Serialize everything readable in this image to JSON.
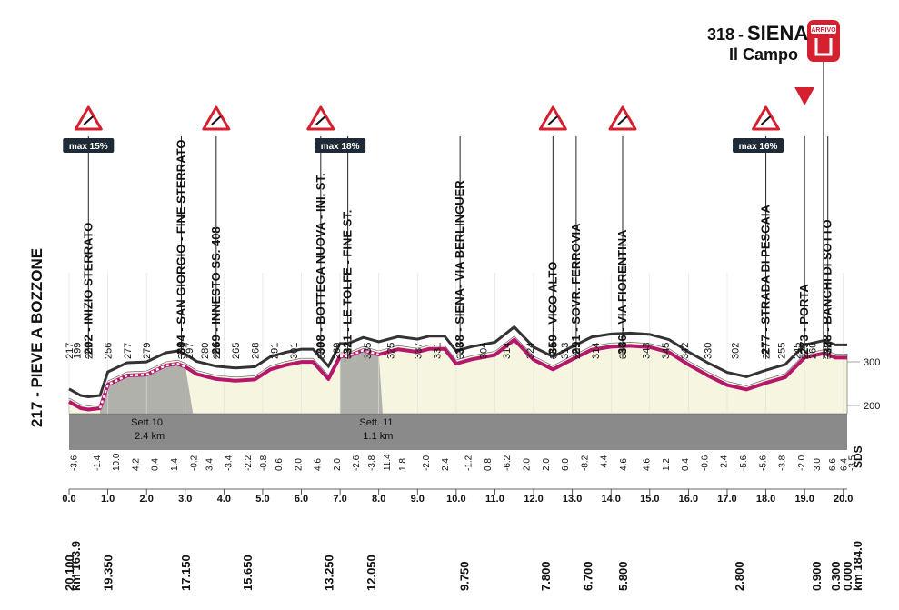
{
  "start": {
    "elevation": "217",
    "name": "PIEVE A BOZZONE",
    "km_total": "km 163.9"
  },
  "finish": {
    "elevation": "318",
    "name": "SIENA",
    "subname": "Il Campo",
    "badge": "ARRIVO",
    "km_total": "km 184.0"
  },
  "y_axis_labels": [
    "300",
    "200"
  ],
  "brand": "SDS",
  "climb_badges": [
    {
      "text": "max 15%",
      "km": 0.5
    },
    {
      "text": "max 18%",
      "km": 7.0
    },
    {
      "text": "max 16%",
      "km": 17.8
    }
  ],
  "sectors": [
    {
      "label": "Sett.10",
      "length": "2.4 km"
    },
    {
      "label": "Sett. 11",
      "length": "1.1 km"
    }
  ],
  "waypoints": [
    {
      "km": 0.5,
      "text": "202 - INIZIO STERRATO",
      "sign": "climb"
    },
    {
      "km": 2.9,
      "text": "304 - SAN GIORGIO - FINE STERRATO",
      "sign": "none"
    },
    {
      "km": 3.8,
      "text": "269 - INNESTO SS. 408",
      "sign": "curve"
    },
    {
      "km": 6.5,
      "text": "308 - BOTTEGA NUOVA - INI. ST.",
      "sign": "climb"
    },
    {
      "km": 7.2,
      "text": "321 - LE TOLFE - FINE ST.",
      "sign": "none"
    },
    {
      "km": 10.1,
      "text": "338 - SIENA- VIA BERLINGUER",
      "sign": "none"
    },
    {
      "km": 12.5,
      "text": "359 - VICO ALTO",
      "sign": "roundabout"
    },
    {
      "km": 13.1,
      "text": "291 - SOVR. FERROVIA",
      "sign": "none"
    },
    {
      "km": 14.3,
      "text": "336 - VIA FIORENTINA",
      "sign": "curve"
    },
    {
      "km": 18.0,
      "text": "277 - STRADA DI PESCAIA",
      "sign": "curve"
    },
    {
      "km": 19.0,
      "text": "273 - PORTA",
      "sign": "triangle"
    },
    {
      "km": 19.6,
      "text": "328 - BANCHI DI SOTTO",
      "sign": "none"
    }
  ],
  "chart_data": {
    "type": "area",
    "xlabel": "",
    "ylabel": "",
    "xlim": [
      0,
      20.1
    ],
    "ylim": [
      150,
      400
    ],
    "x_ticks": [
      "0.0",
      "1.0",
      "2.0",
      "3.0",
      "4.0",
      "5.0",
      "6.0",
      "7.0",
      "8.0",
      "9.0",
      "10.0",
      "11.0",
      "12.0",
      "13.0",
      "14.0",
      "15.0",
      "16.0",
      "17.0",
      "18.0",
      "19.0",
      "20.0"
    ],
    "series": [
      {
        "x": [
          0.0,
          0.3,
          0.5,
          0.8,
          1.0,
          1.5,
          2.0,
          2.5,
          2.8,
          3.0,
          3.3,
          3.8,
          4.3,
          4.8,
          5.2,
          5.6,
          6.0,
          6.3,
          6.7,
          7.0,
          7.2,
          7.6,
          8.0,
          8.5,
          9.0,
          9.3,
          9.7,
          10.0,
          10.4,
          11.0,
          11.5,
          12.0,
          12.5,
          13.0,
          13.5,
          14.0,
          14.5,
          15.0,
          15.5,
          16.0,
          16.5,
          17.0,
          17.5,
          18.0,
          18.5,
          19.0,
          19.5,
          19.8,
          20.1
        ],
        "y": [
          217,
          202,
          199,
          202,
          256,
          277,
          279,
          300,
          304,
          297,
          280,
          269,
          265,
          268,
          291,
          301,
          308,
          308,
          269,
          321,
          321,
          335,
          325,
          337,
          331,
          338,
          338,
          304,
          314,
          324,
          359,
          313,
          291,
          314,
          336,
          343,
          345,
          342,
          330,
          302,
          277,
          255,
          245,
          260,
          273,
          318,
          328,
          318,
          318
        ]
      }
    ],
    "elevation_labels": [
      {
        "km": 0.0,
        "text": "217"
      },
      {
        "km": 0.2,
        "text": "199"
      },
      {
        "km": 0.5,
        "text": "202"
      },
      {
        "km": 1.0,
        "text": "256"
      },
      {
        "km": 1.5,
        "text": "277"
      },
      {
        "km": 2.0,
        "text": "279"
      },
      {
        "km": 2.9,
        "text": "304"
      },
      {
        "km": 3.1,
        "text": "297"
      },
      {
        "km": 3.5,
        "text": "280"
      },
      {
        "km": 3.8,
        "text": "269"
      },
      {
        "km": 4.3,
        "text": "265"
      },
      {
        "km": 4.8,
        "text": "268"
      },
      {
        "km": 5.3,
        "text": "291"
      },
      {
        "km": 5.8,
        "text": "301"
      },
      {
        "km": 6.5,
        "text": "308"
      },
      {
        "km": 6.9,
        "text": "269"
      },
      {
        "km": 7.2,
        "text": "321"
      },
      {
        "km": 7.7,
        "text": "335"
      },
      {
        "km": 8.3,
        "text": "325"
      },
      {
        "km": 9.0,
        "text": "337"
      },
      {
        "km": 9.5,
        "text": "331"
      },
      {
        "km": 10.1,
        "text": "338"
      },
      {
        "km": 10.7,
        "text": "304"
      },
      {
        "km": 11.3,
        "text": "314"
      },
      {
        "km": 11.9,
        "text": "324"
      },
      {
        "km": 12.5,
        "text": "359"
      },
      {
        "km": 12.8,
        "text": "313"
      },
      {
        "km": 13.1,
        "text": "291"
      },
      {
        "km": 13.6,
        "text": "314"
      },
      {
        "km": 14.3,
        "text": "336"
      },
      {
        "km": 14.9,
        "text": "343"
      },
      {
        "km": 15.4,
        "text": "345"
      },
      {
        "km": 15.9,
        "text": "342"
      },
      {
        "km": 16.5,
        "text": "330"
      },
      {
        "km": 17.2,
        "text": "302"
      },
      {
        "km": 18.0,
        "text": "277"
      },
      {
        "km": 18.4,
        "text": "255"
      },
      {
        "km": 18.8,
        "text": "245"
      },
      {
        "km": 19.2,
        "text": "260"
      },
      {
        "km": 19.0,
        "text": "273"
      },
      {
        "km": 19.6,
        "text": "328"
      }
    ],
    "gradients": [
      {
        "km": 0.1,
        "text": "-3.6"
      },
      {
        "km": 0.7,
        "text": "-1.4"
      },
      {
        "km": 1.2,
        "text": "10.0"
      },
      {
        "km": 1.7,
        "text": "4.2"
      },
      {
        "km": 2.2,
        "text": "0.4"
      },
      {
        "km": 2.7,
        "text": "1.4"
      },
      {
        "km": 3.2,
        "text": "-0.2"
      },
      {
        "km": 3.6,
        "text": "3.4"
      },
      {
        "km": 4.1,
        "text": "-3.4"
      },
      {
        "km": 4.6,
        "text": "-2.2"
      },
      {
        "km": 5.0,
        "text": "-0.8"
      },
      {
        "km": 5.4,
        "text": "0.6"
      },
      {
        "km": 5.9,
        "text": "2.0"
      },
      {
        "km": 6.4,
        "text": "4.6"
      },
      {
        "km": 6.9,
        "text": "2.0"
      },
      {
        "km": 7.4,
        "text": "-2.6"
      },
      {
        "km": 7.8,
        "text": "-3.8"
      },
      {
        "km": 8.2,
        "text": "11.4"
      },
      {
        "km": 8.6,
        "text": "1.8"
      },
      {
        "km": 9.2,
        "text": "-2.0"
      },
      {
        "km": 9.7,
        "text": "2.4"
      },
      {
        "km": 10.3,
        "text": "-1.2"
      },
      {
        "km": 10.8,
        "text": "0.8"
      },
      {
        "km": 11.3,
        "text": "-6.2"
      },
      {
        "km": 11.8,
        "text": "2.0"
      },
      {
        "km": 12.3,
        "text": "2.0"
      },
      {
        "km": 12.8,
        "text": "6.0"
      },
      {
        "km": 13.3,
        "text": "-8.2"
      },
      {
        "km": 13.8,
        "text": "-4.4"
      },
      {
        "km": 14.3,
        "text": "4.6"
      },
      {
        "km": 14.9,
        "text": "4.6"
      },
      {
        "km": 15.4,
        "text": "1.2"
      },
      {
        "km": 15.9,
        "text": "0.4"
      },
      {
        "km": 16.4,
        "text": "-0.6"
      },
      {
        "km": 16.9,
        "text": "-2.4"
      },
      {
        "km": 17.4,
        "text": "-5.6"
      },
      {
        "km": 17.9,
        "text": "-5.6"
      },
      {
        "km": 18.4,
        "text": "-3.8"
      },
      {
        "km": 18.9,
        "text": "-2.0"
      },
      {
        "km": 19.3,
        "text": "3.0"
      },
      {
        "km": 19.7,
        "text": "6.6"
      },
      {
        "km": 20.0,
        "text": "6.4"
      },
      {
        "km": 20.2,
        "text": "-3.5"
      }
    ],
    "distance_labels": [
      {
        "km": 0.0,
        "text": "20.100"
      },
      {
        "km": 1.0,
        "text": "19.350"
      },
      {
        "km": 3.0,
        "text": "17.150"
      },
      {
        "km": 4.6,
        "text": "15.650"
      },
      {
        "km": 6.7,
        "text": "13.250"
      },
      {
        "km": 7.8,
        "text": "12.050"
      },
      {
        "km": 10.2,
        "text": "9.750"
      },
      {
        "km": 12.3,
        "text": "7.800"
      },
      {
        "km": 13.4,
        "text": "6.700"
      },
      {
        "km": 14.3,
        "text": "5.800"
      },
      {
        "km": 17.3,
        "text": "2.800"
      },
      {
        "km": 19.3,
        "text": "0.900"
      },
      {
        "km": 19.8,
        "text": "0.300"
      },
      {
        "km": 20.1,
        "text": "0.000"
      }
    ]
  },
  "colors": {
    "route": "#b5176b",
    "profile_fill": "#f6f6e0",
    "gravel_fill": "#9a9a9a",
    "climb_sign_red": "#d52030",
    "finish_badge": "#d52030",
    "badge_bg": "#1e2a35"
  }
}
